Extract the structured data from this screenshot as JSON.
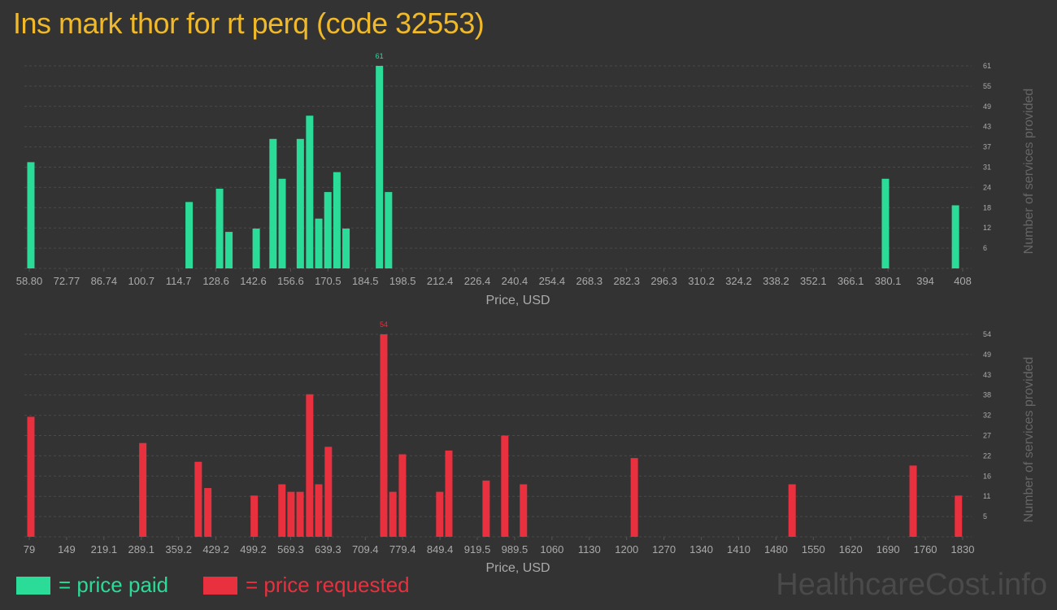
{
  "title": "Ins mark thor for rt perq (code 32553)",
  "colors": {
    "paid": "#2bdc98",
    "requested": "#e8303e",
    "title": "#f0b92a"
  },
  "legend": {
    "paid": "= price paid",
    "requested": "= price requested"
  },
  "watermark": "HealthcareCost.info",
  "chart_data": [
    {
      "type": "bar",
      "series_name": "price paid",
      "xlabel": "Price, USD",
      "ylabel": "Number of services provided",
      "xlim": [
        58.8,
        408
      ],
      "ylim": [
        0,
        61
      ],
      "x_ticks": [
        "58.80",
        "72.77",
        "86.74",
        "100.7",
        "114.7",
        "128.6",
        "142.6",
        "156.6",
        "170.5",
        "184.5",
        "198.5",
        "212.4",
        "226.4",
        "240.4",
        "254.4",
        "268.3",
        "282.3",
        "296.3",
        "310.2",
        "324.2",
        "338.2",
        "352.1",
        "366.1",
        "380.1",
        "394",
        "408"
      ],
      "y_ticks": [
        "6",
        "12",
        "18",
        "24",
        "31",
        "37",
        "43",
        "49",
        "55",
        "61"
      ],
      "peak_label": "61",
      "x": [
        59.4,
        118.6,
        130.0,
        133.5,
        143.7,
        150.0,
        153.4,
        160.2,
        163.7,
        167.1,
        170.5,
        173.9,
        177.3,
        189.8,
        193.2,
        379.1,
        405.3
      ],
      "values": [
        32,
        20,
        24,
        11,
        12,
        39,
        27,
        39,
        46,
        15,
        23,
        29,
        12,
        61,
        23,
        27,
        19
      ]
    },
    {
      "type": "bar",
      "series_name": "price requested",
      "xlabel": "Price, USD",
      "ylabel": "Number of services provided",
      "xlim": [
        79,
        1830
      ],
      "ylim": [
        0,
        54
      ],
      "x_ticks": [
        "79",
        "149",
        "219.1",
        "289.1",
        "359.2",
        "429.2",
        "499.2",
        "569.3",
        "639.3",
        "709.4",
        "779.4",
        "849.4",
        "919.5",
        "989.5",
        "1060",
        "1130",
        "1200",
        "1270",
        "1340",
        "1410",
        "1480",
        "1550",
        "1620",
        "1690",
        "1760",
        "1830"
      ],
      "y_ticks": [
        "5",
        "11",
        "16",
        "22",
        "27",
        "32",
        "38",
        "43",
        "49",
        "54"
      ],
      "peak_label": "54",
      "x": [
        82,
        292,
        396,
        414,
        501,
        553,
        570,
        587,
        605,
        622,
        640,
        744,
        761,
        779,
        849,
        866,
        936,
        971,
        1006,
        1214,
        1510,
        1737,
        1822
      ],
      "values": [
        32,
        25,
        20,
        13,
        11,
        14,
        12,
        12,
        38,
        14,
        24,
        54,
        12,
        22,
        12,
        23,
        15,
        27,
        14,
        21,
        14,
        19,
        11
      ]
    }
  ]
}
